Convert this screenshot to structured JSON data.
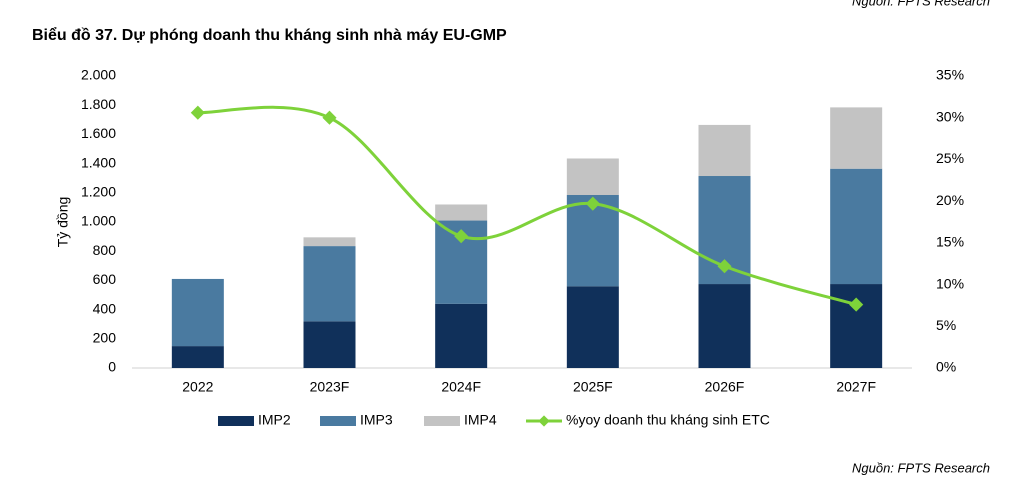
{
  "chart_data": {
    "type": "bar_line",
    "title": "Biểu đồ 37. Dự phóng doanh thu kháng sinh nhà máy EU-GMP",
    "source": "Nguồn: FPTS Research",
    "ylabel": "Tỷ đồng",
    "categories": [
      "2022",
      "2023F",
      "2024F",
      "2025F",
      "2026F",
      "2027F"
    ],
    "series": [
      {
        "name": "IMP2",
        "color": "#10305a",
        "values": [
          150,
          320,
          440,
          560,
          575,
          575
        ]
      },
      {
        "name": "IMP3",
        "color": "#4a7aa0",
        "values": [
          460,
          515,
          570,
          625,
          740,
          790
        ]
      },
      {
        "name": "IMP4",
        "color": "#c3c3c3",
        "values": [
          0,
          60,
          110,
          250,
          350,
          420
        ]
      },
      {
        "name": "%yoy doanh thu kháng sinh ETC",
        "color": "#7ed23a",
        "axis": "y2",
        "values": [
          30.6,
          30.0,
          15.8,
          19.7,
          12.2,
          7.6
        ]
      }
    ],
    "ylim": [
      0,
      2000
    ],
    "yticks": [
      0,
      200,
      400,
      600,
      800,
      {
        "value": 1000,
        "label": "1.000"
      },
      {
        "value": 1200,
        "label": "1.200"
      },
      {
        "value": 1400,
        "label": "1.400"
      },
      {
        "value": 1600,
        "label": "1.600"
      },
      {
        "value": 1800,
        "label": "1.800"
      },
      {
        "value": 2000,
        "label": "2.000"
      }
    ],
    "y2lim": [
      0,
      35
    ],
    "y2ticks": [
      {
        "value": 0,
        "label": "0%"
      },
      {
        "value": 5,
        "label": "5%"
      },
      {
        "value": 10,
        "label": "10%"
      },
      {
        "value": 15,
        "label": "15%"
      },
      {
        "value": 20,
        "label": "20%"
      },
      {
        "value": 25,
        "label": "25%"
      },
      {
        "value": 30,
        "label": "30%"
      },
      {
        "value": 35,
        "label": "35%"
      }
    ],
    "legend": "bottom"
  }
}
